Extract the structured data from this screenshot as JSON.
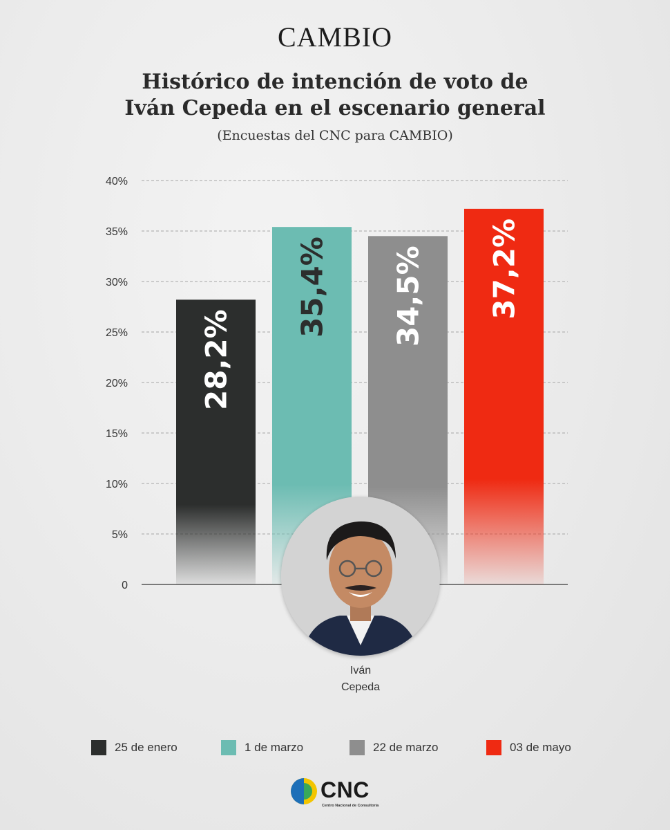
{
  "header": {
    "brand": "CAMBIO",
    "title_line1": "Histórico de intención de voto de",
    "title_line2": "Iván Cepeda en el escenario general",
    "subtitle": "(Encuestas del CNC para CAMBIO)"
  },
  "candidate": {
    "name_line1": "Iván",
    "name_line2": "Cepeda",
    "photo_icon": "candidate-portrait"
  },
  "logo": {
    "text": "CNC",
    "subtext": "Centro Nacional de Consultoría",
    "icon": "cnc-circle-logo"
  },
  "chart_data": {
    "type": "bar",
    "title": "Histórico de intención de voto de Iván Cepeda en el escenario general",
    "subtitle": "(Encuestas del CNC para CAMBIO)",
    "xlabel": "",
    "ylabel": "",
    "categories": [
      "25 de enero",
      "1 de marzo",
      "22 de marzo",
      "03 de mayo"
    ],
    "values": [
      28.2,
      35.4,
      34.5,
      37.2
    ],
    "value_labels": [
      "28,2%",
      "35,4%",
      "34,5%",
      "37,2%"
    ],
    "colors": [
      "#2c2e2d",
      "#6cbcb2",
      "#8e8e8e",
      "#ef2a12"
    ],
    "label_colors": [
      "#ffffff",
      "#2c2e2d",
      "#ffffff",
      "#ffffff"
    ],
    "ylim": [
      0,
      40
    ],
    "yticks": [
      0,
      5,
      10,
      15,
      20,
      25,
      30,
      35,
      40
    ],
    "ytick_labels": [
      "0",
      "5%",
      "10%",
      "15%",
      "20%",
      "25%",
      "30%",
      "35%",
      "40%"
    ],
    "grid": true,
    "legend": "bottom"
  }
}
